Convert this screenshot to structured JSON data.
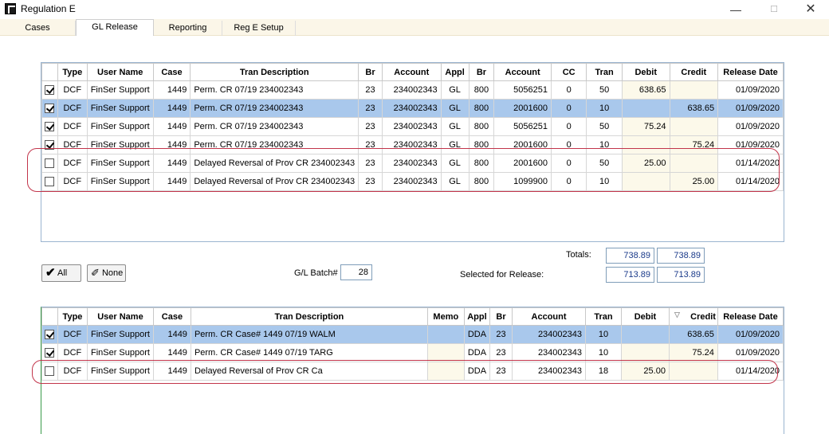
{
  "window": {
    "title": "Regulation E",
    "min": "—",
    "max": "☐",
    "close": "✕"
  },
  "tabs": [
    "Cases",
    "GL Release",
    "Reporting",
    "Reg E Setup"
  ],
  "top_grid": {
    "headers": [
      "",
      "Type",
      "User Name",
      "Case",
      "Tran Description",
      "Br",
      "Account",
      "Appl",
      "Br",
      "Account",
      "CC",
      "Tran",
      "Debit",
      "Credit",
      "Release Date"
    ],
    "rows": [
      {
        "checked": true,
        "selected": false,
        "cells": [
          "DCF",
          "FinSer Support",
          "1449",
          "Perm. CR 07/19 234002343",
          "23",
          "234002343",
          "GL",
          "800",
          "5056251",
          "0",
          "50",
          "638.65",
          "",
          "01/09/2020"
        ]
      },
      {
        "checked": true,
        "selected": true,
        "cells": [
          "DCF",
          "FinSer Support",
          "1449",
          "Perm. CR 07/19 234002343",
          "23",
          "234002343",
          "GL",
          "800",
          "2001600",
          "0",
          "10",
          "",
          "638.65",
          "01/09/2020"
        ]
      },
      {
        "checked": true,
        "selected": false,
        "cells": [
          "DCF",
          "FinSer Support",
          "1449",
          "Perm. CR 07/19 234002343",
          "23",
          "234002343",
          "GL",
          "800",
          "5056251",
          "0",
          "50",
          "75.24",
          "",
          "01/09/2020"
        ]
      },
      {
        "checked": true,
        "selected": false,
        "cells": [
          "DCF",
          "FinSer Support",
          "1449",
          "Perm. CR 07/19 234002343",
          "23",
          "234002343",
          "GL",
          "800",
          "2001600",
          "0",
          "10",
          "",
          "75.24",
          "01/09/2020"
        ]
      },
      {
        "checked": false,
        "selected": false,
        "cells": [
          "DCF",
          "FinSer Support",
          "1449",
          "Delayed Reversal of Prov CR 234002343",
          "23",
          "234002343",
          "GL",
          "800",
          "2001600",
          "0",
          "50",
          "25.00",
          "",
          "01/14/2020"
        ]
      },
      {
        "checked": false,
        "selected": false,
        "cells": [
          "DCF",
          "FinSer Support",
          "1449",
          "Delayed Reversal of Prov CR 234002343",
          "23",
          "234002343",
          "GL",
          "800",
          "1099900",
          "0",
          "10",
          "",
          "25.00",
          "01/14/2020"
        ]
      }
    ]
  },
  "totals": {
    "label": "Totals:",
    "debit": "738.89",
    "credit": "738.89"
  },
  "selected_for_release": {
    "label": "Selected for Release:",
    "debit": "713.89",
    "credit": "713.89"
  },
  "controls": {
    "all_label": "All",
    "none_label": "None",
    "batch_label": "G/L Batch#",
    "batch_value": "28"
  },
  "bottom_grid": {
    "headers": [
      "",
      "Type",
      "User Name",
      "Case",
      "Tran Description",
      "Memo",
      "Appl",
      "Br",
      "Account",
      "Tran",
      "Debit",
      "Credit",
      "Release Date"
    ],
    "rows": [
      {
        "checked": true,
        "selected": true,
        "cells": [
          "DCF",
          "FinSer Support",
          "1449",
          "Perm. CR Case# 1449 07/19 WALM",
          "",
          "DDA",
          "23",
          "234002343",
          "10",
          "",
          "638.65",
          "01/09/2020"
        ]
      },
      {
        "checked": true,
        "selected": false,
        "cells": [
          "DCF",
          "FinSer Support",
          "1449",
          "Perm. CR Case# 1449 07/19 TARG",
          "",
          "DDA",
          "23",
          "234002343",
          "10",
          "",
          "75.24",
          "01/09/2020"
        ]
      },
      {
        "checked": false,
        "selected": false,
        "cells": [
          "DCF",
          "FinSer Support",
          "1449",
          "Delayed Reversal of Prov CR Ca",
          "",
          "DDA",
          "23",
          "234002343",
          "18",
          "25.00",
          "",
          "01/14/2020"
        ]
      }
    ]
  },
  "colors": {
    "selection": "#a9c8ec",
    "highlight": "#c2344a",
    "value_text": "#1a3a8a"
  }
}
